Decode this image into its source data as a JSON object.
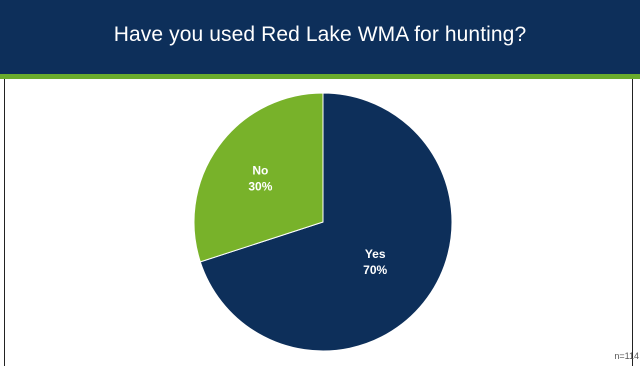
{
  "header": {
    "title": "Have you used Red Lake WMA for hunting?"
  },
  "footer": {
    "note": "n=114"
  },
  "colors": {
    "header_bg": "#0d2f5a",
    "accent": "#6aac2c",
    "yes": "#0d2f5a",
    "no": "#78b22a"
  },
  "chart_data": {
    "type": "pie",
    "title": "Have you used Red Lake WMA for hunting?",
    "slices": [
      {
        "label": "Yes",
        "value": 70,
        "display": "70%",
        "color": "#0d2f5a"
      },
      {
        "label": "No",
        "value": 30,
        "display": "30%",
        "color": "#78b22a"
      }
    ],
    "legend": "none"
  }
}
